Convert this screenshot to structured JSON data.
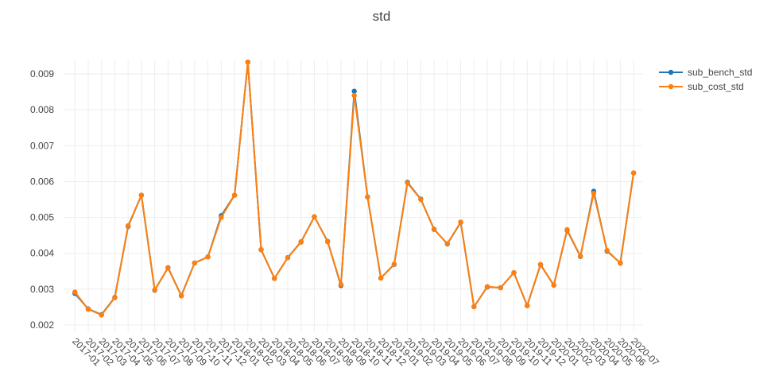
{
  "chart_data": {
    "type": "line",
    "title": "std",
    "xlabel": "",
    "ylabel": "",
    "x": [
      "2017-01",
      "2017-02",
      "2017-03",
      "2017-04",
      "2017-05",
      "2017-06",
      "2017-07",
      "2017-08",
      "2017-09",
      "2017-10",
      "2017-11",
      "2017-12",
      "2018-01",
      "2018-02",
      "2018-03",
      "2018-04",
      "2018-05",
      "2018-06",
      "2018-07",
      "2018-08",
      "2018-09",
      "2018-10",
      "2018-11",
      "2018-12",
      "2019-01",
      "2019-02",
      "2019-03",
      "2019-04",
      "2019-05",
      "2019-06",
      "2019-07",
      "2019-08",
      "2019-09",
      "2019-10",
      "2019-11",
      "2019-12",
      "2020-01",
      "2020-02",
      "2020-03",
      "2020-04",
      "2020-05",
      "2020-06",
      "2020-07"
    ],
    "series": [
      {
        "name": "sub_bench_std",
        "color": "#1f77b4",
        "values": [
          0.00288,
          0.00245,
          0.00229,
          0.00277,
          0.00475,
          0.00562,
          0.00297,
          0.0036,
          0.00282,
          0.00373,
          0.0039,
          0.00505,
          0.00562,
          0.00933,
          0.0041,
          0.0033,
          0.00388,
          0.00432,
          0.00502,
          0.00433,
          0.0031,
          0.00852,
          0.00557,
          0.00331,
          0.00369,
          0.00598,
          0.00551,
          0.00467,
          0.00426,
          0.00486,
          0.00251,
          0.00306,
          0.00304,
          0.00346,
          0.00254,
          0.00368,
          0.00311,
          0.00464,
          0.00391,
          0.00573,
          0.00406,
          0.00373,
          0.00624
        ]
      },
      {
        "name": "sub_cost_std",
        "color": "#ff7f0e",
        "values": [
          0.00292,
          0.00244,
          0.00228,
          0.00276,
          0.00477,
          0.00562,
          0.00298,
          0.00359,
          0.00281,
          0.00373,
          0.0039,
          0.005,
          0.00562,
          0.00933,
          0.0041,
          0.0033,
          0.00388,
          0.00431,
          0.00502,
          0.00432,
          0.00313,
          0.0084,
          0.00557,
          0.00331,
          0.0037,
          0.00596,
          0.0055,
          0.00466,
          0.00427,
          0.00487,
          0.00251,
          0.00307,
          0.00304,
          0.00346,
          0.00254,
          0.00369,
          0.00311,
          0.00466,
          0.00392,
          0.00567,
          0.00408,
          0.00372,
          0.00624
        ]
      }
    ],
    "ylim": [
      0.0018,
      0.0094
    ],
    "yticks": [
      0.002,
      0.003,
      0.004,
      0.005,
      0.006,
      0.007,
      0.008,
      0.009
    ],
    "ytick_labels": [
      "0.002",
      "0.003",
      "0.004",
      "0.005",
      "0.006",
      "0.007",
      "0.008",
      "0.009"
    ],
    "grid": true,
    "legend_position": "top-right"
  }
}
